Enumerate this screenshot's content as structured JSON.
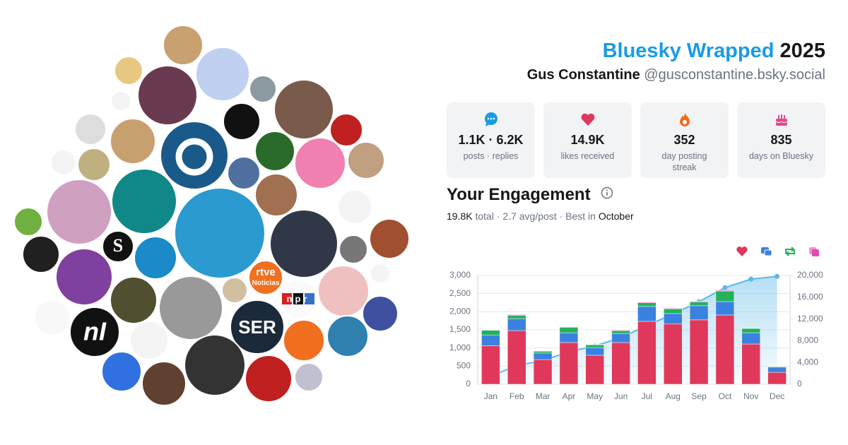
{
  "header": {
    "title": "Bluesky Wrapped",
    "year": "2025",
    "name": "Gus Constantine",
    "handle": "@gusconstantine.bsky.social"
  },
  "stats": [
    {
      "value": "1.1K · 6.2K",
      "label": "posts · replies"
    },
    {
      "value": "14.9K",
      "label": "likes received"
    },
    {
      "value": "352",
      "label": "day posting streak"
    },
    {
      "value": "835",
      "label": "days on Bluesky"
    }
  ],
  "engagement": {
    "title": "Your Engagement",
    "total": "19.8K",
    "total_label": "total",
    "separator": "·",
    "avg": "2.7 avg/post",
    "best_label": "Best in",
    "best": "October"
  },
  "collage": {
    "logos": [
      "S",
      "nI",
      "SER",
      "npr",
      "rtve",
      "Noticias"
    ]
  },
  "chart_data": {
    "type": "bar",
    "stacked": true,
    "grid": true,
    "categories": [
      "Jan",
      "Feb",
      "Mar",
      "Apr",
      "May",
      "Jun",
      "Jul",
      "Aug",
      "Sep",
      "Oct",
      "Nov",
      "Dec"
    ],
    "series": [
      {
        "color": "#e0385a",
        "values": [
          1060,
          1480,
          680,
          1150,
          800,
          1150,
          1735,
          1660,
          1775,
          1910,
          1110,
          330
        ]
      },
      {
        "color": "#3b82e0",
        "values": [
          300,
          330,
          180,
          270,
          210,
          250,
          410,
          290,
          390,
          370,
          310,
          140
        ]
      },
      {
        "color": "#22b35a",
        "values": [
          130,
          90,
          50,
          150,
          80,
          80,
          100,
          130,
          100,
          290,
          120,
          20
        ]
      },
      {
        "color": "#e04ab0",
        "values": [
          10,
          20,
          10,
          15,
          10,
          15,
          20,
          15,
          20,
          20,
          10,
          10
        ]
      },
      {
        "type": "line",
        "axis": "y2",
        "color": "#5ab8e8",
        "values": [
          1500,
          3420,
          4350,
          5950,
          7050,
          8550,
          10800,
          12900,
          15170,
          17770,
          19330,
          19830
        ]
      }
    ],
    "ylim": [
      0,
      3000
    ],
    "yticks": [
      0,
      500,
      {
        "value": 1000,
        "label": "1,000"
      },
      {
        "value": 1500,
        "label": "1,500"
      },
      {
        "value": 2000,
        "label": "2,000"
      },
      {
        "value": 2500,
        "label": "2,500"
      },
      {
        "value": 3000,
        "label": "3,000"
      }
    ],
    "y2lim": [
      0,
      20000
    ],
    "y2ticks": [
      0,
      {
        "value": 4000,
        "label": "4,000"
      },
      {
        "value": 8000,
        "label": "8,000"
      },
      {
        "value": 12000,
        "label": "12,000"
      },
      {
        "value": 16000,
        "label": "16,000"
      },
      {
        "value": 20000,
        "label": "20,000"
      }
    ]
  }
}
